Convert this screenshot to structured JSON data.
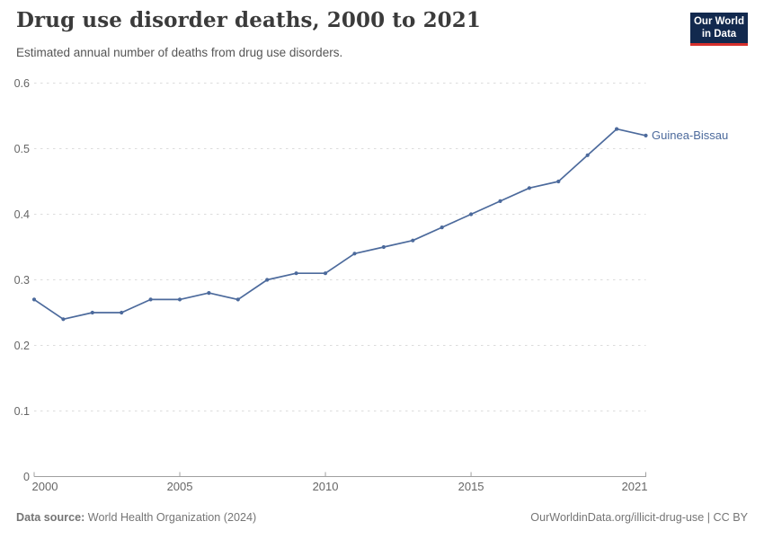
{
  "header": {
    "title": "Drug use disorder deaths, 2000 to 2021",
    "subtitle": "Estimated annual number of deaths from drug use disorders.",
    "logo": {
      "line1": "Our World",
      "line2": "in Data"
    }
  },
  "chart_data": {
    "type": "line",
    "title": "Drug use disorder deaths, 2000 to 2021",
    "subtitle": "Estimated annual number of deaths from drug use disorders.",
    "x": [
      2000,
      2001,
      2002,
      2003,
      2004,
      2005,
      2006,
      2007,
      2008,
      2009,
      2010,
      2011,
      2012,
      2013,
      2014,
      2015,
      2016,
      2017,
      2018,
      2019,
      2020,
      2021
    ],
    "series": [
      {
        "name": "Guinea-Bissau",
        "values": [
          0.27,
          0.24,
          0.25,
          0.25,
          0.27,
          0.27,
          0.28,
          0.27,
          0.3,
          0.31,
          0.31,
          0.34,
          0.35,
          0.36,
          0.38,
          0.4,
          0.42,
          0.44,
          0.45,
          0.49,
          0.53,
          0.52
        ]
      }
    ],
    "xlim": [
      2000,
      2021
    ],
    "ylim": [
      0,
      0.6
    ],
    "x_ticks": [
      2000,
      2005,
      2010,
      2015,
      2021
    ],
    "y_ticks": [
      0,
      0.1,
      0.2,
      0.3,
      0.4,
      0.5,
      0.6
    ],
    "grid": "horizontal-dashed",
    "legend": "end-of-line-label",
    "end_label": "Guinea-Bissau"
  },
  "footer": {
    "source_label": "Data source:",
    "source_text": " World Health Organization (2024)",
    "credit": "OurWorldinData.org/illicit-drug-use | CC BY"
  },
  "colors": {
    "line": "#4c6a9c",
    "grid": "#dcdcdc",
    "axis": "#a0a0a0",
    "tick_label": "#666666",
    "title": "#3b3b3b",
    "subtitle": "#555555",
    "footer": "#757575",
    "logo_bg": "#12294e",
    "logo_stripe": "#d6302c"
  }
}
